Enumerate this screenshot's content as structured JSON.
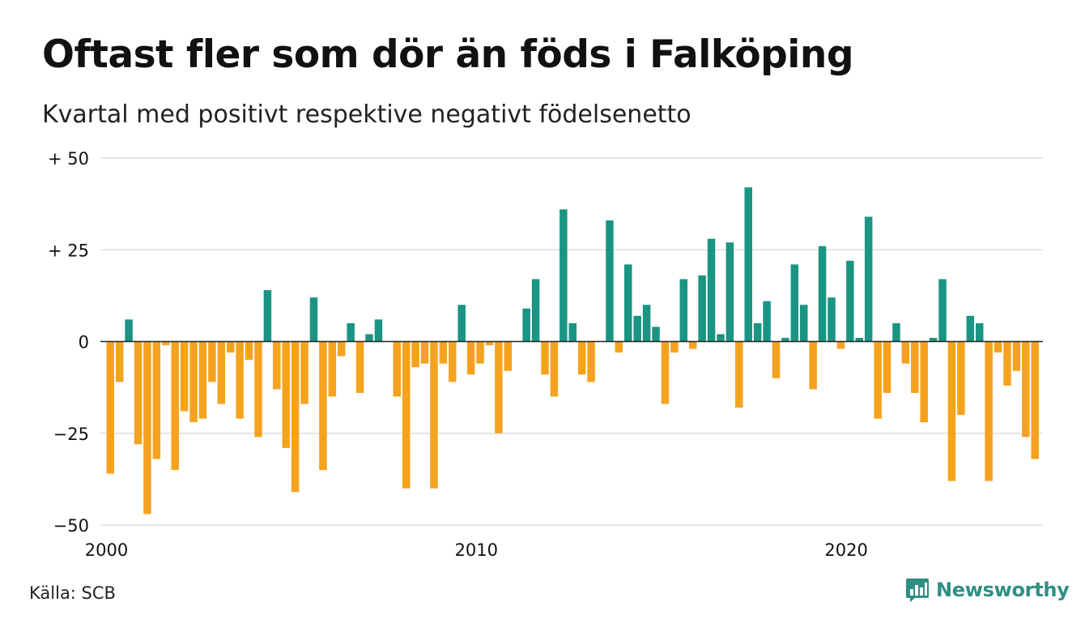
{
  "title": "Oftast fler som dör än föds i Falköping",
  "subtitle": "Kvartal med positivt respektive negativt födelsenetto",
  "source": "Källa: SCB",
  "brand": {
    "name": "Newsworthy",
    "icon": "newsworthy-chart-logo-icon"
  },
  "colors": {
    "positive": "#1a9583",
    "negative": "#f5a31f",
    "grid": "#dddddd",
    "zero_line": "#222222",
    "brand": "#2f8f83"
  },
  "chart_data": {
    "type": "bar",
    "title": "Oftast fler som dör än föds i Falköping",
    "subtitle": "Kvartal med positivt respektive negativt födelsenetto",
    "xlabel": "",
    "ylabel": "",
    "ylim": [
      -50,
      50
    ],
    "yticks": [
      {
        "value": 50,
        "label": "+ 50"
      },
      {
        "value": 25,
        "label": "+ 25"
      },
      {
        "value": 0,
        "label": "0"
      },
      {
        "value": -25,
        "label": "−25"
      },
      {
        "value": -50,
        "label": "−50"
      }
    ],
    "xticks": [
      {
        "label": "2000",
        "quarter_index": 0
      },
      {
        "label": "2010",
        "quarter_index": 40
      },
      {
        "label": "2020",
        "quarter_index": 80
      }
    ],
    "grid": true,
    "start": "2000 Q1",
    "values": [
      -36,
      -11,
      6,
      -28,
      -47,
      -32,
      -1,
      -35,
      -19,
      -22,
      -21,
      -11,
      -17,
      -3,
      -21,
      -5,
      -26,
      14,
      -13,
      -29,
      -41,
      -17,
      12,
      -35,
      -15,
      -4,
      5,
      -14,
      2,
      6,
      0,
      -15,
      -40,
      -7,
      -6,
      -40,
      -6,
      -11,
      10,
      -9,
      -6,
      -1,
      -25,
      -8,
      0,
      9,
      17,
      -9,
      -15,
      36,
      5,
      -9,
      -11,
      0,
      33,
      -3,
      21,
      7,
      10,
      4,
      -17,
      -3,
      17,
      -2,
      18,
      28,
      2,
      27,
      -18,
      42,
      5,
      11,
      -10,
      1,
      21,
      10,
      -13,
      26,
      12,
      -2,
      22,
      1,
      34,
      -21,
      -14,
      5,
      -6,
      -14,
      -22,
      1,
      17,
      -38,
      -20,
      7,
      5,
      -38,
      -3,
      -12,
      -8,
      -26,
      -32
    ]
  }
}
